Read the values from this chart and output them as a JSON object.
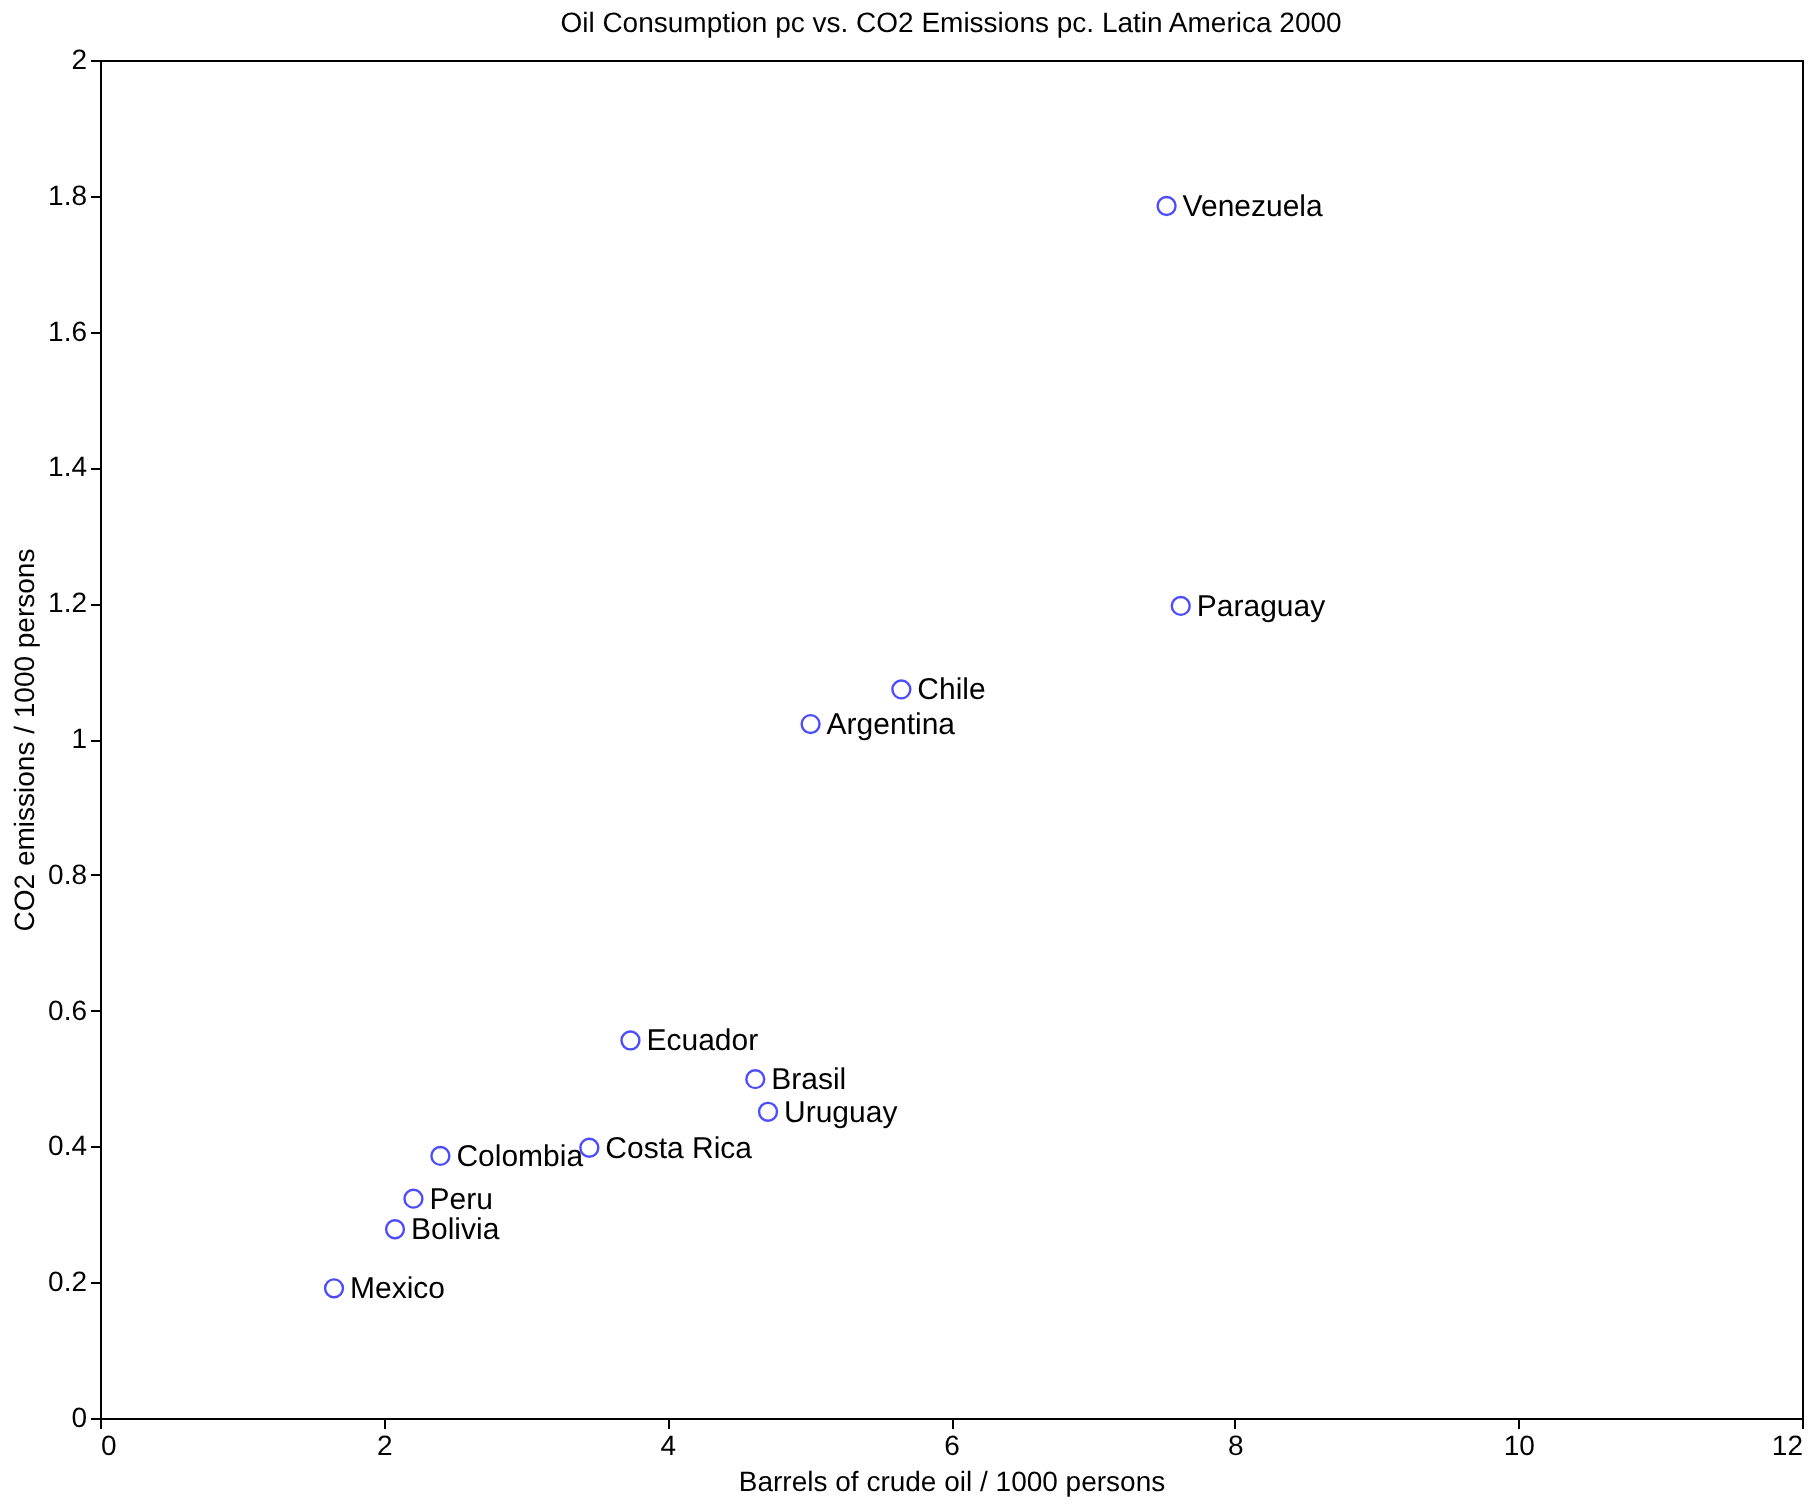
{
  "chart_data": {
    "type": "scatter",
    "title": "Oil Consumption pc vs. CO2 Emissions pc. Latin America 2000",
    "xlabel": "Barrels of crude oil / 1000 persons",
    "ylabel": "CO2 emissions / 1000 persons",
    "x": [
      7.52,
      7.62,
      5.65,
      5.01,
      3.74,
      4.62,
      4.71,
      3.45,
      2.4,
      2.21,
      2.08,
      1.65
    ],
    "series": [
      {
        "color": "#0000ff",
        "values": [
          1.785,
          1.196,
          1.073,
          1.022,
          0.556,
          0.499,
          0.451,
          0.398,
          0.386,
          0.323,
          0.278,
          0.191
        ]
      }
    ],
    "annotations": [
      {
        "text": "Venezuela",
        "x": 7.52,
        "y": 1.785
      },
      {
        "text": "Paraguay",
        "x": 7.62,
        "y": 1.196
      },
      {
        "text": "Chile",
        "x": 5.65,
        "y": 1.073
      },
      {
        "text": "Argentina",
        "x": 5.01,
        "y": 1.022
      },
      {
        "text": "Ecuador",
        "x": 3.74,
        "y": 0.556
      },
      {
        "text": "Brasil",
        "x": 4.62,
        "y": 0.499
      },
      {
        "text": "Uruguay",
        "x": 4.71,
        "y": 0.451
      },
      {
        "text": "Costa Rica",
        "x": 3.45,
        "y": 0.398
      },
      {
        "text": "Colombia",
        "x": 2.4,
        "y": 0.386
      },
      {
        "text": "Peru",
        "x": 2.21,
        "y": 0.323
      },
      {
        "text": "Bolivia",
        "x": 2.08,
        "y": 0.278
      },
      {
        "text": "Mexico",
        "x": 1.65,
        "y": 0.191
      }
    ],
    "xlim": [
      0,
      12
    ],
    "xticks": [
      0,
      2,
      4,
      6,
      8,
      10,
      12
    ],
    "ylim": [
      0,
      2
    ],
    "yticks": [
      0,
      0.2,
      0.4,
      0.6,
      0.8,
      1,
      1.2,
      1.4,
      1.6,
      1.8,
      2
    ],
    "marker": "circle",
    "grid": false
  }
}
